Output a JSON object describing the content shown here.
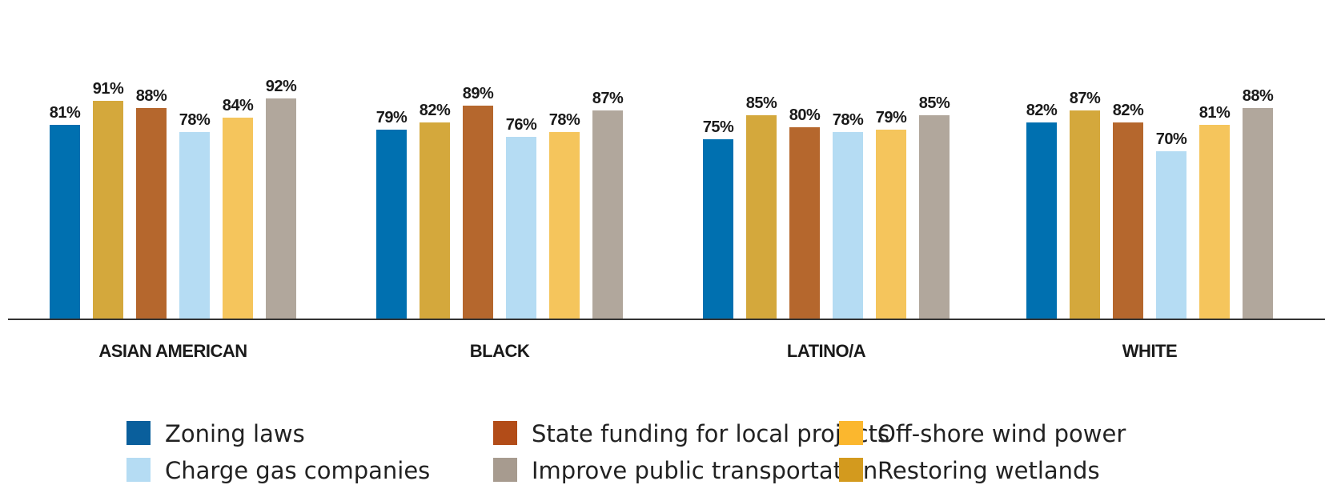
{
  "chart_data": {
    "type": "bar",
    "title": "",
    "xlabel": "",
    "ylabel": "",
    "ylim": [
      0,
      100
    ],
    "grid": false,
    "legend_position": "bottom",
    "categories": [
      "ASIAN AMERICAN",
      "BLACK",
      "LATINO/A",
      "WHITE"
    ],
    "series": [
      {
        "name": "Zoning laws",
        "color": "#0070b0",
        "legend_color": "#0a5f9c",
        "values": [
          81,
          79,
          75,
          82
        ]
      },
      {
        "name": "Restoring wetlands",
        "color": "#d4a83c",
        "legend_color": "#d39a1e",
        "values": [
          91,
          82,
          85,
          87
        ]
      },
      {
        "name": "State funding for local projects",
        "color": "#b5672d",
        "legend_color": "#b24c18",
        "values": [
          88,
          89,
          80,
          82
        ]
      },
      {
        "name": "Charge gas companies",
        "color": "#b5dcf3",
        "legend_color": "#b5dcf3",
        "values": [
          78,
          76,
          78,
          70
        ]
      },
      {
        "name": "Off-shore wind power",
        "color": "#f5c55c",
        "legend_color": "#fbb72e",
        "values": [
          84,
          78,
          79,
          81
        ]
      },
      {
        "name": "Improve public transportation",
        "color": "#b1a79c",
        "legend_color": "#a79b8f",
        "values": [
          92,
          87,
          85,
          88
        ]
      }
    ],
    "value_suffix": "%",
    "legend_order": [
      0,
      2,
      4,
      3,
      5,
      1
    ]
  }
}
